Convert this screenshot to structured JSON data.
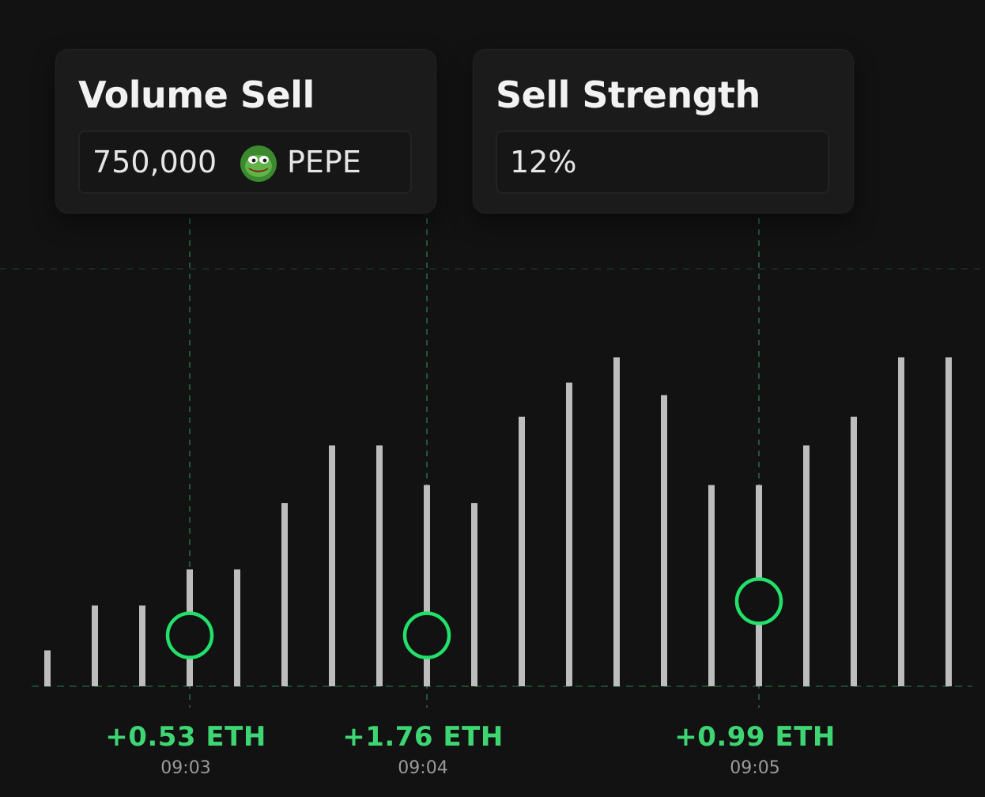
{
  "cards": {
    "volume": {
      "title": "Volume Sell",
      "value": "750,000",
      "token_symbol": "PEPE",
      "token_icon": "pepe-frog-icon"
    },
    "strength": {
      "title": "Sell Strength",
      "value": "12%"
    }
  },
  "colors": {
    "background": "#121212",
    "card": "#1b1b1b",
    "bar": "#bdbdbd",
    "accent_green": "#3dd673",
    "marker_green": "#22e06a"
  },
  "chart_data": {
    "type": "bar",
    "values": [
      20,
      45,
      45,
      65,
      65,
      102,
      134,
      134,
      112,
      102,
      150,
      169,
      183,
      162,
      112,
      112,
      134,
      150,
      183,
      183
    ],
    "ylim": [
      0,
      200
    ],
    "grid": false,
    "markers": [
      {
        "bar_index": 3,
        "value": 16,
        "eth": "+0.53 ETH",
        "time": "09:03"
      },
      {
        "bar_index": 8,
        "value": 16,
        "eth": "+1.76 ETH",
        "time": "09:04"
      },
      {
        "bar_index": 15,
        "value": 35,
        "eth": "+0.99 ETH",
        "time": "09:05"
      }
    ]
  }
}
